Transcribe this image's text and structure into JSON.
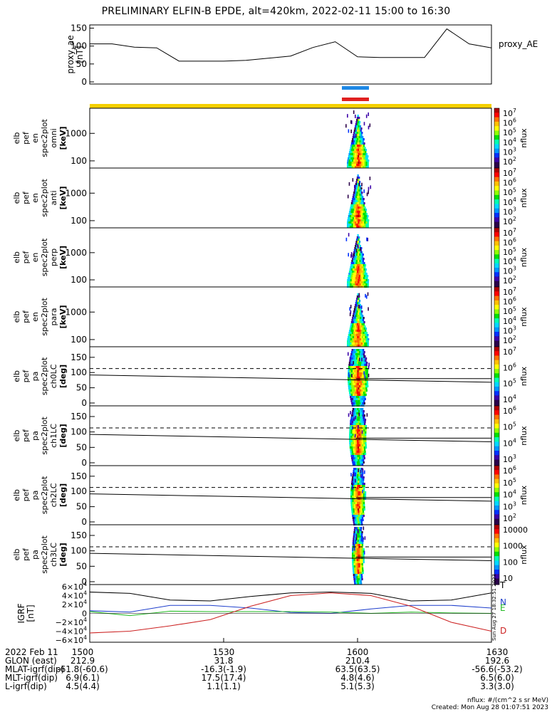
{
  "title": "PRELIMINARY ELFIN-B EPDE, alt=420km, 2022-02-11 15:00 to 16:30",
  "proxy_panel": {
    "ylabel": "proxy_ae\n[nT]",
    "legend": "proxy_AE",
    "yticks": [
      "150",
      "100",
      "50",
      "0"
    ]
  },
  "spec_panels": [
    {
      "label": [
        "elb",
        "pef",
        "en",
        "spec2plot",
        "omni",
        "[keV]"
      ],
      "yticks": [
        "1000",
        "100"
      ],
      "cbar_ticks": [
        "10^7",
        "10^6",
        "10^5",
        "10^4",
        "10^3",
        "10^2"
      ],
      "cbar_label": "nflux"
    },
    {
      "label": [
        "elb",
        "pef",
        "en",
        "spec2plot",
        "anti",
        "[keV]"
      ],
      "yticks": [
        "1000",
        "100"
      ],
      "cbar_ticks": [
        "10^7",
        "10^6",
        "10^5",
        "10^4",
        "10^3",
        "10^2"
      ],
      "cbar_label": "nflux"
    },
    {
      "label": [
        "elb",
        "pef",
        "en",
        "spec2plot",
        "perp",
        "[keV]"
      ],
      "yticks": [
        "1000",
        "100"
      ],
      "cbar_ticks": [
        "10^7",
        "10^6",
        "10^5",
        "10^4",
        "10^3",
        "10^2"
      ],
      "cbar_label": "nflux"
    },
    {
      "label": [
        "elb",
        "pef",
        "en",
        "spec2plot",
        "para",
        "[keV]"
      ],
      "yticks": [
        "1000",
        "100"
      ],
      "cbar_ticks": [
        "10^7",
        "10^6",
        "10^5",
        "10^4",
        "10^3",
        "10^2"
      ],
      "cbar_label": "nflux"
    }
  ],
  "pa_panels": [
    {
      "label": [
        "elb",
        "pef",
        "pa",
        "spec2plot",
        "ch0LC",
        "[deg]"
      ],
      "yticks": [
        "150",
        "100",
        "50",
        "0"
      ],
      "cbar_ticks": [
        "10^7",
        "10^6",
        "10^5",
        "10^4"
      ],
      "cbar_label": "nflux"
    },
    {
      "label": [
        "elb",
        "pef",
        "pa",
        "spec2plot",
        "ch1LC",
        "[deg]"
      ],
      "yticks": [
        "150",
        "100",
        "50",
        "0"
      ],
      "cbar_ticks": [
        "10^6",
        "10^5",
        "10^4",
        "10^3"
      ],
      "cbar_label": "nflux"
    },
    {
      "label": [
        "elb",
        "pef",
        "pa",
        "spec2plot",
        "ch2LC",
        "[deg]"
      ],
      "yticks": [
        "150",
        "100",
        "50",
        "0"
      ],
      "cbar_ticks": [
        "10^6",
        "10^5",
        "10^4",
        "10^3",
        "10^2"
      ],
      "cbar_label": "nflux"
    },
    {
      "label": [
        "elb",
        "pef",
        "pa",
        "spec2plot",
        "ch3LC",
        "[deg]"
      ],
      "yticks": [
        "150",
        "100",
        "50",
        "0"
      ],
      "cbar_ticks": [
        "10000",
        "1000",
        "100",
        "10"
      ],
      "cbar_label": "nflux"
    }
  ],
  "igrf_panel": {
    "ylabel": "IGRF\n[nT]",
    "yticks": [
      "6×10^4",
      "4×10^4",
      "2×10^4",
      "0",
      "−2×10^4",
      "−4×10^4",
      "−6×10^4"
    ],
    "legend": [
      {
        "name": "T",
        "color": "#000000"
      },
      {
        "name": "N",
        "color": "#1f3fcc"
      },
      {
        "name": "E",
        "color": "#22bb22"
      },
      {
        "name": "D",
        "color": "#cc2222"
      }
    ],
    "side_text": "Sun Aug 27 18:32:51 2023"
  },
  "xaxis": {
    "row_labels": [
      "2022 Feb 11",
      "GLON (east)",
      "MLAT-igrf(dip)",
      "MLT-igrf(dip)",
      "L-igrf(dip)"
    ],
    "columns": [
      {
        "time": "1500",
        "vals": [
          "212.9",
          "-61.8(-60.6)",
          "6.9(6.1)",
          "4.5(4.4)"
        ]
      },
      {
        "time": "1530",
        "vals": [
          "31.8",
          "-16.3(-1.9)",
          "17.5(17.4)",
          "1.1(1.1)"
        ]
      },
      {
        "time": "1600",
        "vals": [
          "210.4",
          "63.5(63.5)",
          "4.8(4.6)",
          "5.1(5.3)"
        ]
      },
      {
        "time": "1630",
        "vals": [
          "192.6",
          "-56.6(-53.2)",
          "6.5(6.0)",
          "3.3(3.0)"
        ]
      }
    ]
  },
  "footer": {
    "units": "nflux: #/(cm^2 s sr MeV)",
    "created": "Created: Mon Aug 28 01:07:51 2023"
  },
  "colors": {
    "blue_bar": "#1e88e5",
    "red_bar": "#e02020",
    "yellow_bar": "#f5d000"
  },
  "chart_data": [
    {
      "type": "line",
      "name": "proxy_AE",
      "x": [
        "15:00",
        "15:05",
        "15:10",
        "15:15",
        "15:20",
        "15:25",
        "15:30",
        "15:35",
        "15:40",
        "15:45",
        "15:50",
        "15:55",
        "16:00",
        "16:05",
        "16:10",
        "16:15",
        "16:20",
        "16:25",
        "16:30"
      ],
      "y": [
        106,
        106,
        97,
        95,
        58,
        58,
        58,
        60,
        66,
        72,
        96,
        112,
        70,
        68,
        68,
        68,
        148,
        106,
        95
      ],
      "ylim": [
        0,
        160
      ]
    },
    {
      "type": "heatmap",
      "name": "energy spectrograms",
      "x_center": "15:59:50",
      "y_range_keV": [
        60,
        7000
      ],
      "log_y": true,
      "z_range": [
        100,
        10000000
      ]
    },
    {
      "type": "heatmap",
      "name": "pitch-angle spectrograms",
      "x_center": "15:59:50",
      "y_range_deg": [
        0,
        180
      ],
      "dashed_line_deg": 113,
      "solid_line_deg": [
        92,
        68
      ]
    },
    {
      "type": "line",
      "name": "IGRF",
      "series": [
        {
          "name": "T",
          "values": [
            48000,
            45000,
            30000,
            28000,
            38000,
            46000,
            48000,
            45000,
            28000,
            30000,
            46000
          ]
        },
        {
          "name": "N",
          "values": [
            6000,
            3000,
            18000,
            18000,
            12000,
            2000,
            0,
            10000,
            18000,
            18000,
            12000
          ]
        },
        {
          "name": "E",
          "values": [
            4000,
            -5000,
            5000,
            4000,
            4000,
            4000,
            3000,
            0,
            3000,
            1000,
            0
          ]
        },
        {
          "name": "D",
          "values": [
            -44000,
            -40000,
            -28000,
            -14000,
            16000,
            40000,
            46000,
            40000,
            16000,
            -20000,
            -40000
          ]
        }
      ],
      "ylim": [
        -60000,
        60000
      ]
    }
  ]
}
